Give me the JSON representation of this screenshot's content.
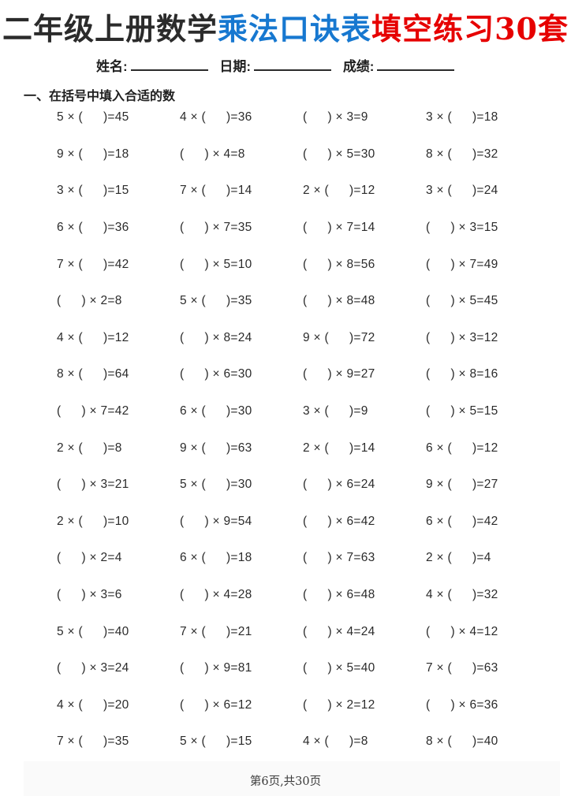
{
  "title": {
    "part_grade": "二年级上册数学",
    "part_topic": "乘法口诀表",
    "part_exercise": "填空练习30套",
    "topic_color": "#1778d0",
    "exercise_color": "#e60000"
  },
  "meta": {
    "name_label": "姓名:",
    "date_label": "日期:",
    "score_label": "成绩:"
  },
  "section_heading": "一、在括号中填入合适的数",
  "footer": "第6页,共30页",
  "problems": [
    [
      {
        "pre": "5 × (",
        "post": ")=45"
      },
      {
        "pre": "4 × (",
        "post": ")=36"
      },
      {
        "pre": "(",
        "post": ") × 3=9"
      },
      {
        "pre": "3 × (",
        "post": ")=18"
      }
    ],
    [
      {
        "pre": "9 × (",
        "post": ")=18"
      },
      {
        "pre": "(",
        "post": ") × 4=8"
      },
      {
        "pre": "(",
        "post": ") × 5=30"
      },
      {
        "pre": "8 × (",
        "post": ")=32"
      }
    ],
    [
      {
        "pre": "3 × (",
        "post": ")=15"
      },
      {
        "pre": "7 × (",
        "post": ")=14"
      },
      {
        "pre": "2 × (",
        "post": ")=12"
      },
      {
        "pre": "3 × (",
        "post": ")=24"
      }
    ],
    [
      {
        "pre": "6 × (",
        "post": ")=36"
      },
      {
        "pre": "(",
        "post": ") × 7=35"
      },
      {
        "pre": "(",
        "post": ") × 7=14"
      },
      {
        "pre": "(",
        "post": ") × 3=15"
      }
    ],
    [
      {
        "pre": "7 × (",
        "post": ")=42"
      },
      {
        "pre": "(",
        "post": ") × 5=10"
      },
      {
        "pre": "(",
        "post": ") × 8=56"
      },
      {
        "pre": "(",
        "post": ") × 7=49"
      }
    ],
    [
      {
        "pre": "(",
        "post": ") × 2=8"
      },
      {
        "pre": "5 × (",
        "post": ")=35"
      },
      {
        "pre": "(",
        "post": ") × 8=48"
      },
      {
        "pre": "(",
        "post": ") × 5=45"
      }
    ],
    [
      {
        "pre": "4 × (",
        "post": ")=12"
      },
      {
        "pre": "(",
        "post": ") × 8=24"
      },
      {
        "pre": "9 × (",
        "post": ")=72"
      },
      {
        "pre": "(",
        "post": ") × 3=12"
      }
    ],
    [
      {
        "pre": "8 × (",
        "post": ")=64"
      },
      {
        "pre": "(",
        "post": ") × 6=30"
      },
      {
        "pre": "(",
        "post": ") × 9=27"
      },
      {
        "pre": "(",
        "post": ") × 8=16"
      }
    ],
    [
      {
        "pre": "(",
        "post": ") × 7=42"
      },
      {
        "pre": "6 × (",
        "post": ")=30"
      },
      {
        "pre": "3 × (",
        "post": ")=9"
      },
      {
        "pre": "(",
        "post": ") × 5=15"
      }
    ],
    [
      {
        "pre": "2 × (",
        "post": ")=8"
      },
      {
        "pre": "9 × (",
        "post": ")=63"
      },
      {
        "pre": "2 × (",
        "post": ")=14"
      },
      {
        "pre": "6 × (",
        "post": ")=12"
      }
    ],
    [
      {
        "pre": "(",
        "post": ") × 3=21"
      },
      {
        "pre": "5 × (",
        "post": ")=30"
      },
      {
        "pre": "(",
        "post": ") × 6=24"
      },
      {
        "pre": "9 × (",
        "post": ")=27"
      }
    ],
    [
      {
        "pre": "2 × (",
        "post": ")=10"
      },
      {
        "pre": "(",
        "post": ") × 9=54"
      },
      {
        "pre": "(",
        "post": ") × 6=42"
      },
      {
        "pre": "6 × (",
        "post": ")=42"
      }
    ],
    [
      {
        "pre": "(",
        "post": ") × 2=4"
      },
      {
        "pre": "6 × (",
        "post": ")=18"
      },
      {
        "pre": "(",
        "post": ") × 7=63"
      },
      {
        "pre": "2 × (",
        "post": ")=4"
      }
    ],
    [
      {
        "pre": "(",
        "post": ") × 3=6"
      },
      {
        "pre": "(",
        "post": ") × 4=28"
      },
      {
        "pre": "(",
        "post": ") × 6=48"
      },
      {
        "pre": "4 × (",
        "post": ")=32"
      }
    ],
    [
      {
        "pre": "5 × (",
        "post": ")=40"
      },
      {
        "pre": "7 × (",
        "post": ")=21"
      },
      {
        "pre": "(",
        "post": ") × 4=24"
      },
      {
        "pre": "(",
        "post": ") × 4=12"
      }
    ],
    [
      {
        "pre": "(",
        "post": ") × 3=24"
      },
      {
        "pre": "(",
        "post": ") × 9=81"
      },
      {
        "pre": "(",
        "post": ") × 5=40"
      },
      {
        "pre": "7 × (",
        "post": ")=63"
      }
    ],
    [
      {
        "pre": "4 × (",
        "post": ")=20"
      },
      {
        "pre": "(",
        "post": ") × 6=12"
      },
      {
        "pre": "(",
        "post": ") × 2=12"
      },
      {
        "pre": "(",
        "post": ") × 6=36"
      }
    ],
    [
      {
        "pre": "7 × (",
        "post": ")=35"
      },
      {
        "pre": "5 × (",
        "post": ")=15"
      },
      {
        "pre": "4 × (",
        "post": ")=8"
      },
      {
        "pre": "8 × (",
        "post": ")=40"
      }
    ]
  ]
}
